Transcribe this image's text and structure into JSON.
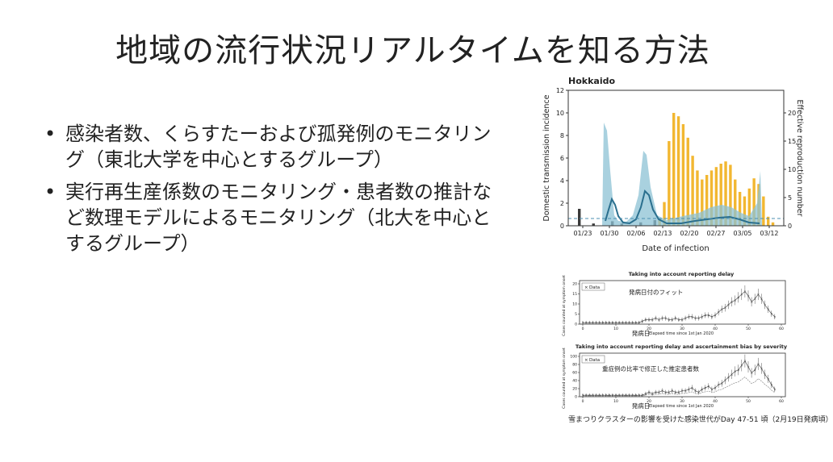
{
  "slide": {
    "title": "地域の流行状況リアルタイムを知る方法",
    "bullets": [
      "感染者数、くらすたーおよび孤発例のモニタリング（東北大学を中心とするグループ）",
      "実行再生産係数のモニタリング・患者数の推計など数理モデルによるモニタリング（北大を中心とするグループ）"
    ],
    "bullet_symbol": "•"
  },
  "figure_top": {
    "region": "Hokkaido",
    "ylabel_left": "Domestic transmission incidence",
    "ylabel_right": "Effective reproduction number",
    "xlabel": "Date of infection",
    "xticks": [
      "01/23",
      "01/30",
      "02/06",
      "02/13",
      "02/20",
      "02/27",
      "03/05",
      "03/12"
    ],
    "yticks_left": [
      "0",
      "2",
      "4",
      "6",
      "8",
      "10",
      "12"
    ],
    "yticks_right": [
      "0",
      "5",
      "10",
      "15",
      "20"
    ],
    "colors": {
      "bars": "#f2b731",
      "band": "#8cc2d4",
      "line": "#2a6f8e",
      "dashed": "#4b8fb0"
    }
  },
  "figure_mid": {
    "title": "Taking into account reporting delay",
    "annotation": "発病日付のフィット",
    "legend": "Data",
    "ylabel": "Cases counted at symptom onset",
    "xlabel_jp": "発病日",
    "xlabel_en": "Elapsed time since 1st Jan 2020",
    "xticks": [
      "0",
      "10",
      "20",
      "30",
      "40",
      "50",
      "60"
    ],
    "yticks": [
      "0",
      "5",
      "10",
      "15",
      "20"
    ]
  },
  "figure_bot": {
    "title": "Taking into account reporting delay and ascertainment bias by severity",
    "annotation": "重症例の比率で修正した推定患者数",
    "legend": "Data",
    "ylabel": "Cases counted at symptom onset",
    "xlabel_jp": "発病日",
    "xlabel_en": "Elapsed time since 1st Jan 2020",
    "xticks": [
      "0",
      "10",
      "20",
      "30",
      "40",
      "50",
      "60"
    ],
    "yticks": [
      "0",
      "20",
      "40",
      "60",
      "80",
      "100"
    ]
  },
  "caption": "雪まつりクラスターの影響を受けた感染世代がDay 47-51 頃（2月19日発病頃）"
}
